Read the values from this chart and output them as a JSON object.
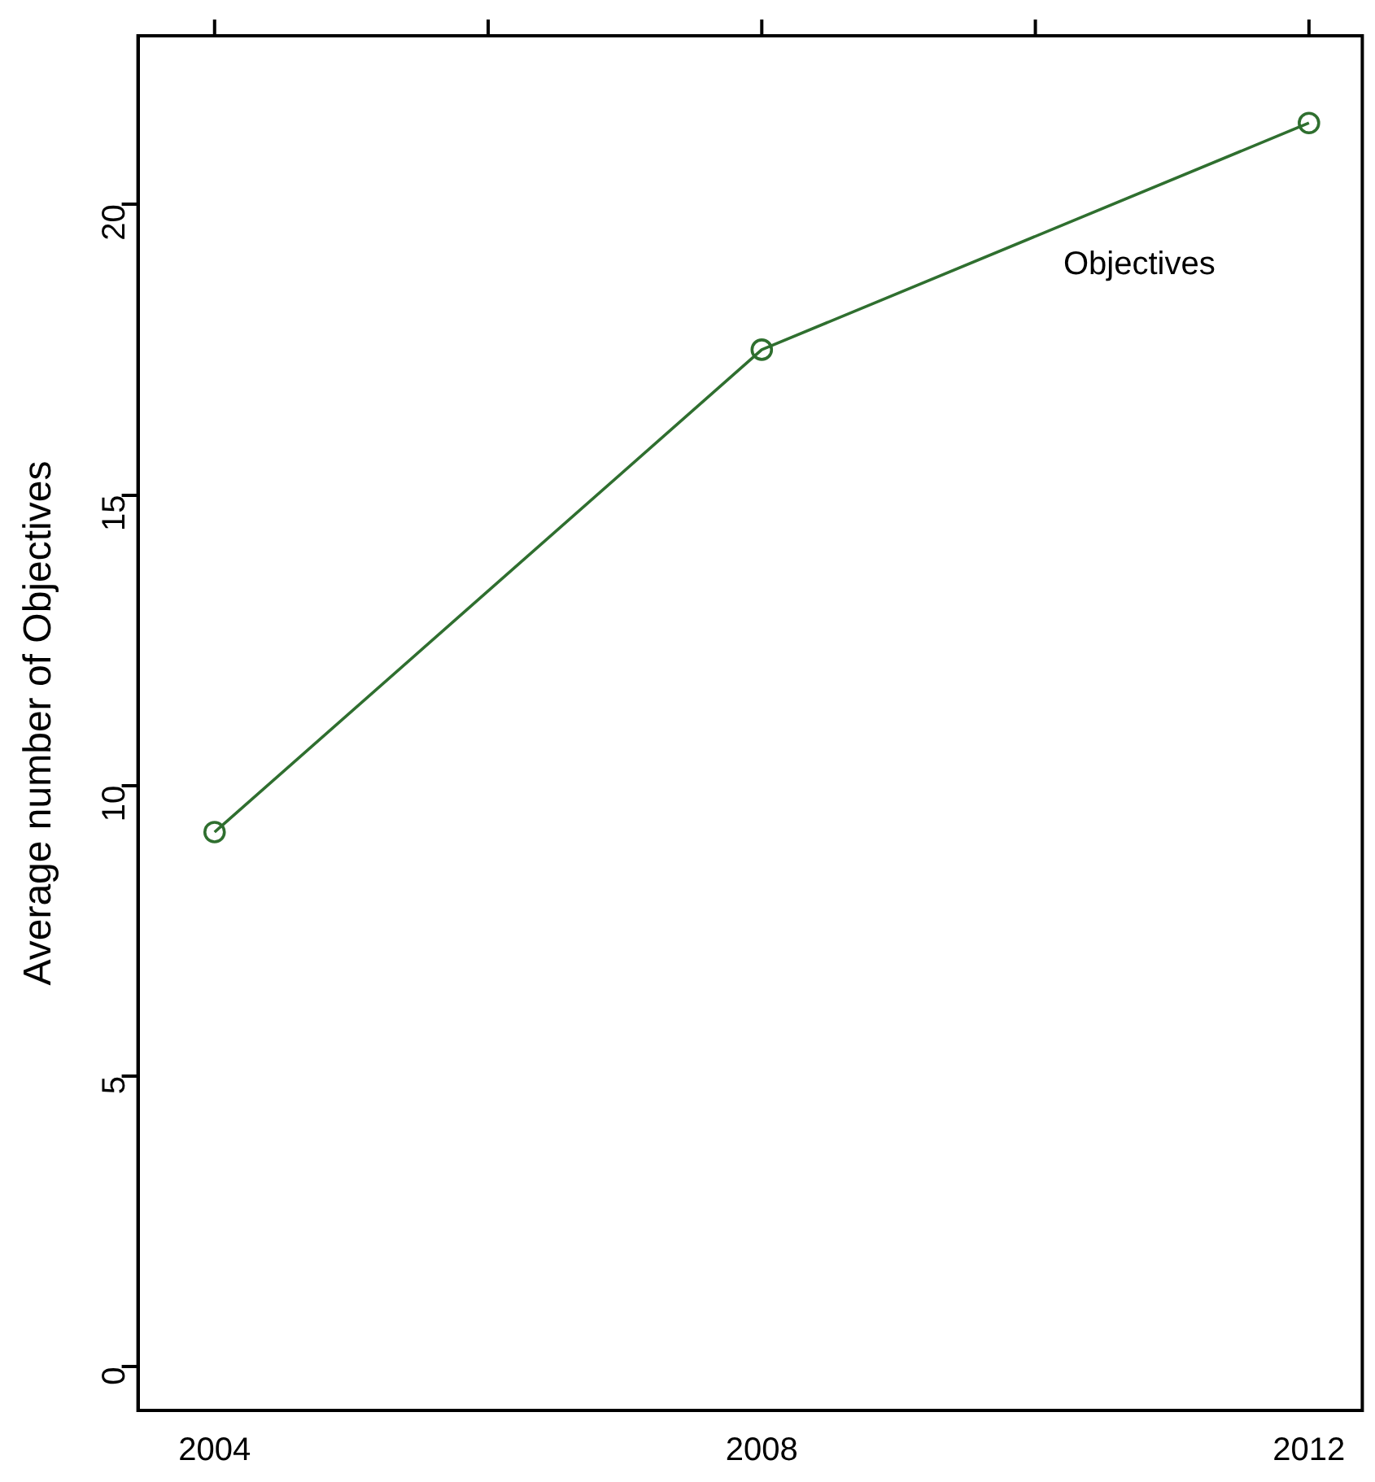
{
  "chart_data": {
    "type": "line",
    "ylabel": "Average number of Objectives",
    "x": [
      2004,
      2008,
      2012
    ],
    "series": [
      {
        "name": "Objectives",
        "color": "#2f6f2f",
        "values": [
          9.2,
          17.5,
          21.4
        ]
      }
    ],
    "xlim": [
      2003.44,
      2012.39
    ],
    "xticks": [
      2004,
      {
        "value": 2006,
        "label": null
      },
      2008,
      {
        "value": 2010,
        "label": null
      },
      2012
    ],
    "ylim": [
      -0.75,
      22.9
    ],
    "yticks": [
      0,
      5,
      10,
      15,
      20
    ],
    "grid": false,
    "legend": false,
    "marker": "circle",
    "line_style": "solid"
  }
}
